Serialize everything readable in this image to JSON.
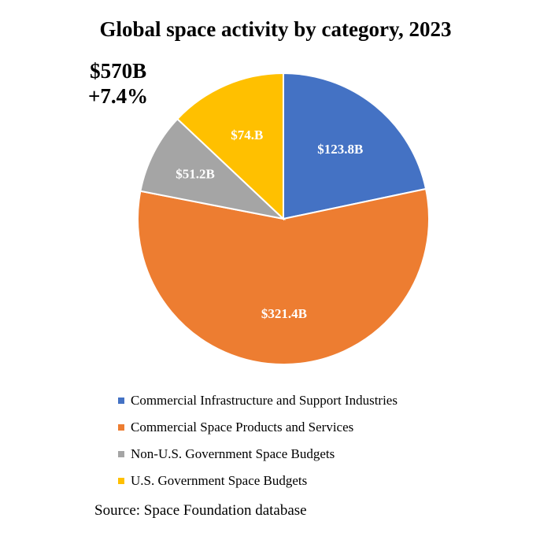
{
  "header": {
    "title": "Global space activity by category, 2023",
    "total": "$570B",
    "growth": "+7.4%"
  },
  "footer": {
    "source": "Source: Space Foundation database"
  },
  "chart_data": {
    "type": "pie",
    "title": "Global space activity by category, 2023",
    "start_angle": "12 o'clock, clockwise",
    "slices": [
      {
        "name": "Commercial Infrastructure and Support Industries",
        "value": 123.8,
        "label": "$123.8B",
        "color": "#4472C4"
      },
      {
        "name": "Commercial Space Products and Services",
        "value": 321.4,
        "label": "$321.4B",
        "color": "#ED7D31"
      },
      {
        "name": "Non-U.S. Government Space Budgets",
        "value": 51.2,
        "label": "$51.2B",
        "color": "#A5A5A5"
      },
      {
        "name": "U.S. Government Space Budgets",
        "value": 74.0,
        "label": "$74.B",
        "color": "#FFC000"
      }
    ],
    "legend_position": "bottom",
    "annotations": [
      "$570B",
      "+7.4%"
    ]
  }
}
